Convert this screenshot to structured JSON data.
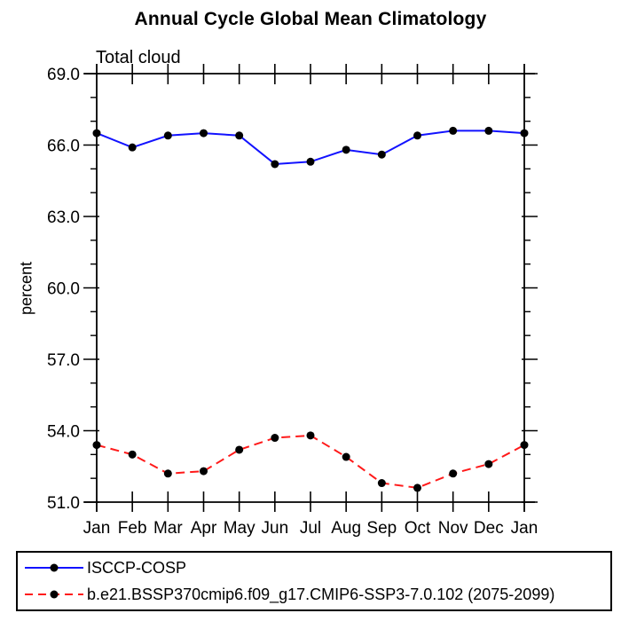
{
  "title": "Annual Cycle Global Mean Climatology",
  "colors": {
    "axis": "#000000",
    "text": "#000000",
    "background": "#ffffff"
  },
  "chart_data": {
    "type": "line",
    "subtitle": "Total cloud",
    "ylabel": "percent",
    "xlabel": "",
    "x_categories": [
      "Jan",
      "Feb",
      "Mar",
      "Apr",
      "May",
      "Jun",
      "Jul",
      "Aug",
      "Sep",
      "Oct",
      "Nov",
      "Dec",
      "Jan"
    ],
    "ylim": [
      51.0,
      69.0
    ],
    "y_major_ticks": [
      69.0,
      66.0,
      63.0,
      60.0,
      57.0,
      54.0,
      51.0
    ],
    "y_tick_labels": [
      "69.0",
      "66.0",
      "63.0",
      "60.0",
      "57.0",
      "54.0",
      "51.0"
    ],
    "y_minor_step": 1.0,
    "grid": false,
    "legend_position": "bottom-box",
    "marker": "filled-circle",
    "marker_color": "#000000",
    "series": [
      {
        "name": "ISCCP-COSP",
        "color": "#1212ff",
        "line_style": "solid",
        "values": [
          66.5,
          65.9,
          66.4,
          66.5,
          66.4,
          65.2,
          65.3,
          65.8,
          65.6,
          66.4,
          66.6,
          66.6,
          66.5
        ]
      },
      {
        "name": "b.e21.BSSP370cmip6.f09_g17.CMIP6-SSP3-7.0.102 (2075-2099)",
        "color": "#ff1a1a",
        "line_style": "dashed",
        "values": [
          53.4,
          53.0,
          52.2,
          52.3,
          53.2,
          53.7,
          53.8,
          52.9,
          51.8,
          51.6,
          52.2,
          52.6,
          53.4
        ]
      }
    ]
  }
}
